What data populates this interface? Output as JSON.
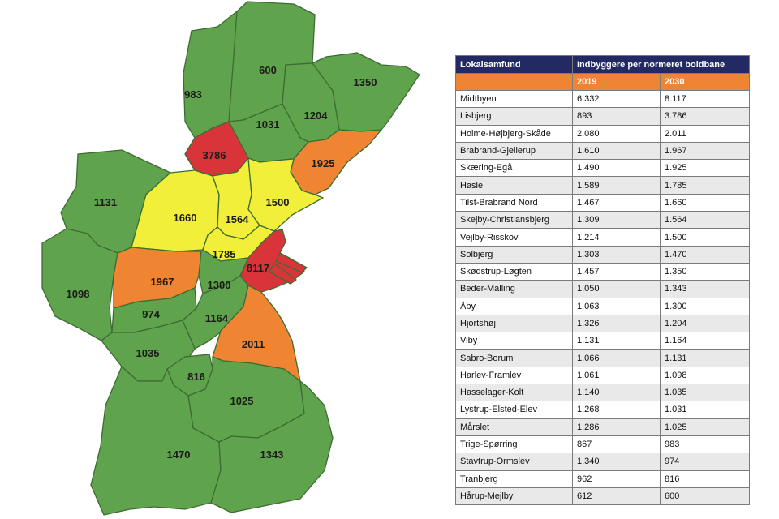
{
  "colors": {
    "green": "#5fa34c",
    "yellow": "#f2ef3a",
    "orange": "#ef8532",
    "red": "#d9343a",
    "header_navy": "#232a63"
  },
  "map": {
    "regions": [
      {
        "label": "600",
        "color": "green"
      },
      {
        "label": "983",
        "color": "green"
      },
      {
        "label": "1350",
        "color": "green"
      },
      {
        "label": "1204",
        "color": "green"
      },
      {
        "label": "1031",
        "color": "green"
      },
      {
        "label": "3786",
        "color": "red"
      },
      {
        "label": "1925",
        "color": "orange"
      },
      {
        "label": "1131",
        "color": "green"
      },
      {
        "label": "1660",
        "color": "yellow"
      },
      {
        "label": "1564",
        "color": "yellow"
      },
      {
        "label": "1500",
        "color": "yellow"
      },
      {
        "label": "1785",
        "color": "yellow"
      },
      {
        "label": "8117",
        "color": "red"
      },
      {
        "label": "1098",
        "color": "green"
      },
      {
        "label": "1967",
        "color": "orange"
      },
      {
        "label": "1300",
        "color": "green"
      },
      {
        "label": "974",
        "color": "green"
      },
      {
        "label": "1164",
        "color": "green"
      },
      {
        "label": "2011",
        "color": "orange"
      },
      {
        "label": "1035",
        "color": "green"
      },
      {
        "label": "816",
        "color": "green"
      },
      {
        "label": "1025",
        "color": "green"
      },
      {
        "label": "1470",
        "color": "green"
      },
      {
        "label": "1343",
        "color": "green"
      }
    ]
  },
  "table": {
    "col_community": "Lokalsamfund",
    "col_residents": "Indbyggere per normeret boldbane",
    "year_a": "2019",
    "year_b": "2030",
    "rows": [
      [
        "Midtbyen",
        "6.332",
        "8.117"
      ],
      [
        "Lisbjerg",
        "893",
        "3.786"
      ],
      [
        "Holme-Højbjerg-Skåde",
        "2.080",
        "2.011"
      ],
      [
        "Brabrand-Gjellerup",
        "1.610",
        "1.967"
      ],
      [
        "Skæring-Egå",
        "1.490",
        "1.925"
      ],
      [
        "Hasle",
        "1.589",
        "1.785"
      ],
      [
        "Tilst-Brabrand Nord",
        "1.467",
        "1.660"
      ],
      [
        "Skejby-Christiansbjerg",
        "1.309",
        "1.564"
      ],
      [
        "Vejlby-Risskov",
        "1.214",
        "1.500"
      ],
      [
        "Solbjerg",
        "1.303",
        "1.470"
      ],
      [
        "Skødstrup-Løgten",
        "1.457",
        "1.350"
      ],
      [
        "Beder-Malling",
        "1.050",
        "1.343"
      ],
      [
        "Åby",
        "1.063",
        "1.300"
      ],
      [
        "Hjortshøj",
        "1.326",
        "1.204"
      ],
      [
        "Viby",
        "1.131",
        "1.164"
      ],
      [
        "Sabro-Borum",
        "1.066",
        "1.131"
      ],
      [
        "Harlev-Framlev",
        "1.061",
        "1.098"
      ],
      [
        "Hasselager-Kolt",
        "1.140",
        "1.035"
      ],
      [
        "Lystrup-Elsted-Elev",
        "1.268",
        "1.031"
      ],
      [
        "Mårslet",
        "1.286",
        "1.025"
      ],
      [
        "Trige-Spørring",
        "867",
        "983"
      ],
      [
        "Stavtrup-Ormslev",
        "1.340",
        "974"
      ],
      [
        "Tranbjerg",
        "962",
        "816"
      ],
      [
        "Hårup-Mejlby",
        "612",
        "600"
      ]
    ]
  }
}
